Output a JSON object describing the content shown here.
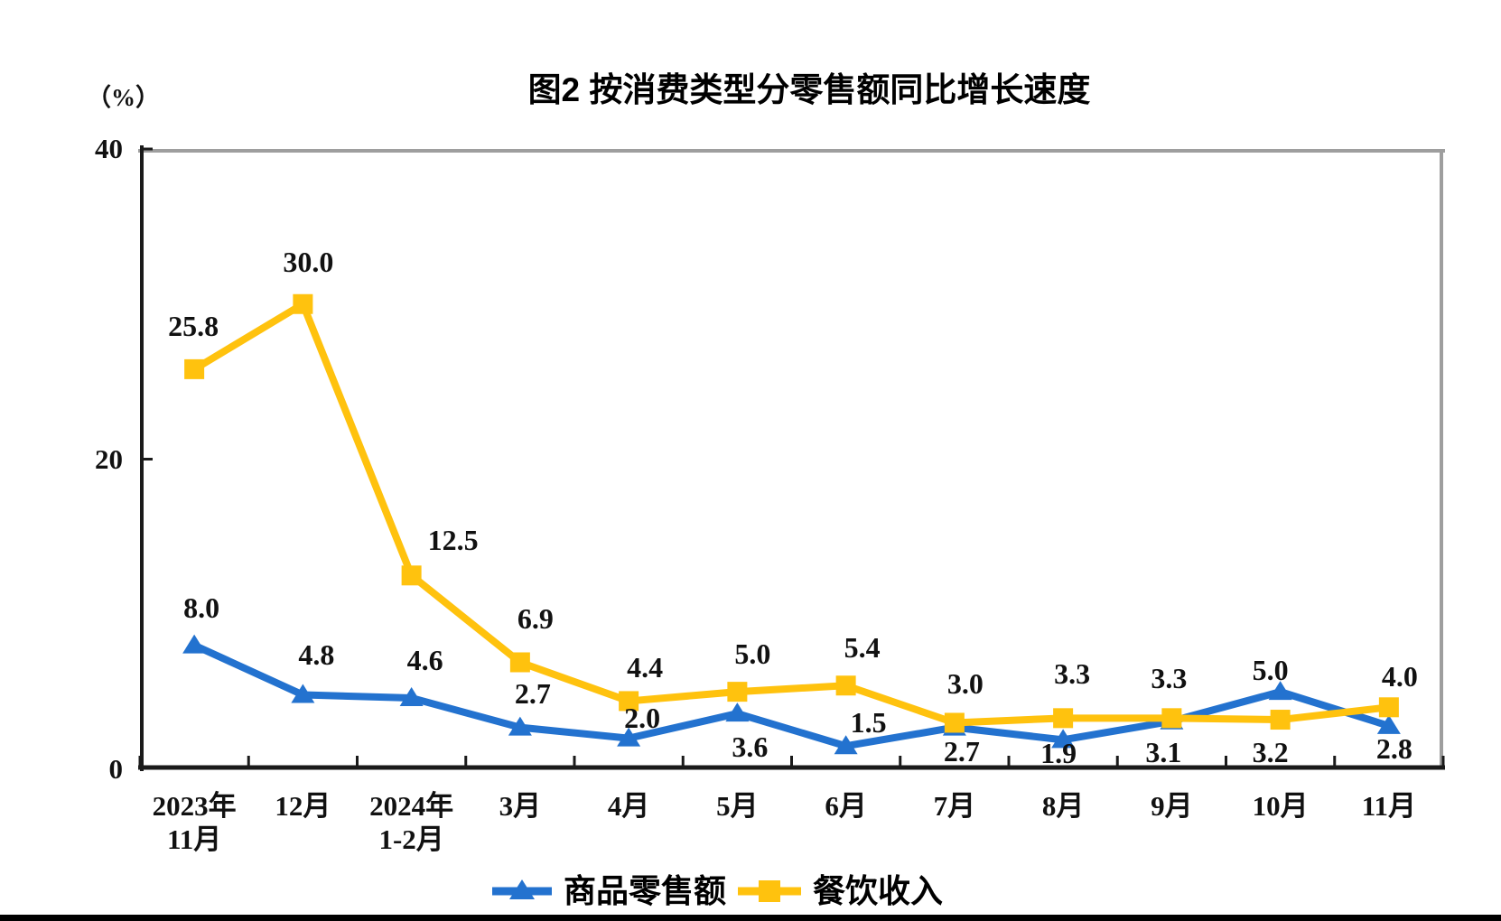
{
  "chart_data": {
    "type": "line",
    "title": "图2  按消费类型分零售额同比增长速度",
    "unit": "（%）",
    "xlabel": "",
    "ylabel": "（%）",
    "ylim": [
      0,
      40
    ],
    "yticks": [
      0,
      20,
      40
    ],
    "grid": false,
    "legend_position": "bottom",
    "categories": [
      [
        "2023年",
        "11月"
      ],
      [
        "12月"
      ],
      [
        "2024年",
        "1-2月"
      ],
      [
        "3月"
      ],
      [
        "4月"
      ],
      [
        "5月"
      ],
      [
        "6月"
      ],
      [
        "7月"
      ],
      [
        "8月"
      ],
      [
        "9月"
      ],
      [
        "10月"
      ],
      [
        "11月"
      ]
    ],
    "series": [
      {
        "name": "商品零售额",
        "marker": "triangle",
        "color": "#2372CF",
        "values": [
          8.0,
          4.8,
          4.6,
          2.7,
          2.0,
          3.6,
          1.5,
          2.7,
          1.9,
          3.1,
          5.0,
          2.8
        ],
        "label_offsets": [
          [
            8,
            -42
          ],
          [
            15,
            -45
          ],
          [
            15,
            -42
          ],
          [
            14,
            -38
          ],
          [
            15,
            -23
          ],
          [
            14,
            37
          ],
          [
            25,
            -26
          ],
          [
            8,
            26
          ],
          [
            -5,
            15
          ],
          [
            -9,
            34
          ],
          [
            -11,
            -24
          ],
          [
            6,
            25
          ]
        ]
      },
      {
        "name": "餐饮收入",
        "marker": "square",
        "color": "#FFC20E",
        "values": [
          25.8,
          30.0,
          12.5,
          6.9,
          4.4,
          5.0,
          5.4,
          3.0,
          3.3,
          3.3,
          3.2,
          4.0
        ],
        "label_offsets": [
          [
            -1,
            -48
          ],
          [
            6,
            -47
          ],
          [
            46,
            -39
          ],
          [
            17,
            -48
          ],
          [
            18,
            -37
          ],
          [
            17,
            -42
          ],
          [
            18,
            -42
          ],
          [
            12,
            -43
          ],
          [
            10,
            -49
          ],
          [
            -3,
            -44
          ],
          [
            -11,
            36
          ],
          [
            12,
            -34
          ]
        ]
      }
    ],
    "colors": {
      "axis_black": "#1a1a1a",
      "border_gray": "#9e9e9e",
      "label_text": "#111111"
    }
  }
}
